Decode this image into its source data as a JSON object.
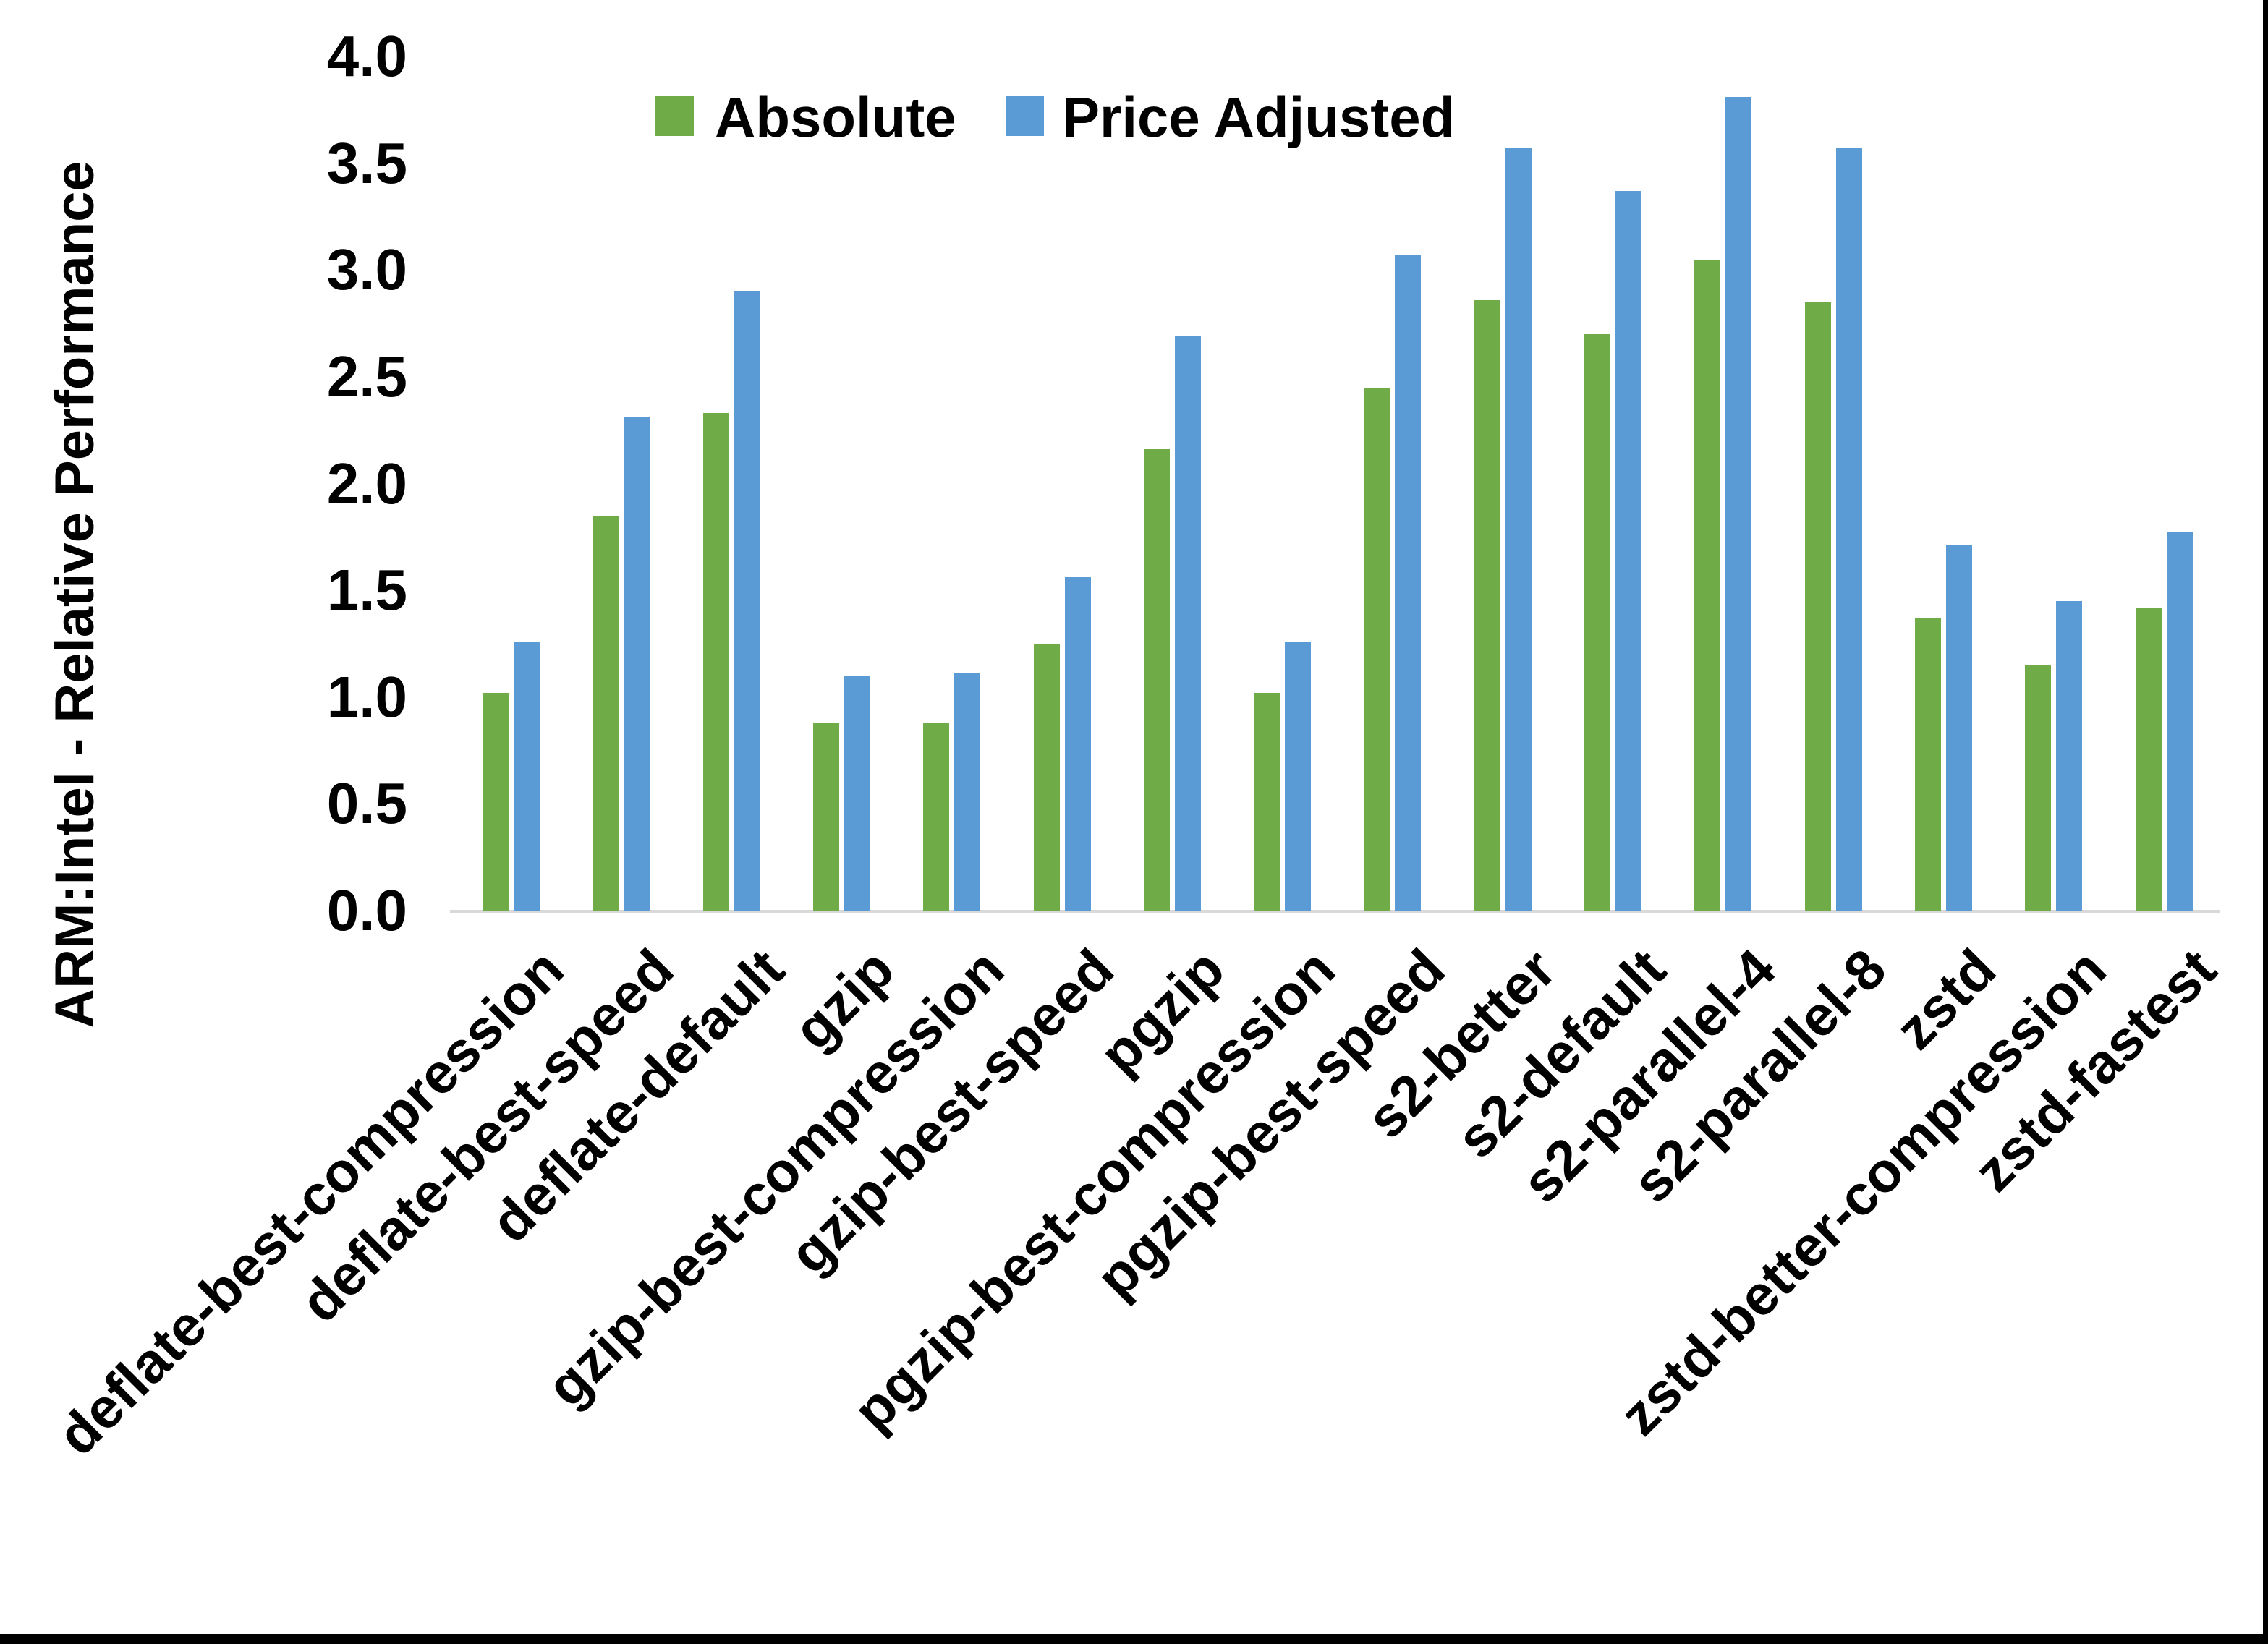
{
  "chart_data": {
    "type": "bar",
    "title": "",
    "xlabel": "",
    "ylabel": "ARM:Intel - Relative Performance",
    "ylim": [
      0.0,
      4.0
    ],
    "ytick_step": 0.5,
    "ytick_labels": [
      "0.0",
      "0.5",
      "1.0",
      "1.5",
      "2.0",
      "2.5",
      "3.0",
      "3.5",
      "4.0"
    ],
    "grid": "off",
    "legend_position": "top-center",
    "bar_orientation": "vertical",
    "x_label_rotation_deg": 45,
    "categories": [
      "deflate-best-compression",
      "deflate-best-speed",
      "deflate-default",
      "gzip",
      "gzip-best-compression",
      "gzip-best-speed",
      "pgzip",
      "pgzip-best-compression",
      "pgzip-best-speed",
      "s2-better",
      "s2-default",
      "s2-parallel-4",
      "s2-parallel-8",
      "zstd",
      "zstd-better-compression",
      "zstd-fastest"
    ],
    "series": [
      {
        "name": "Absolute",
        "color": "#6FAC47",
        "values": [
          1.02,
          1.85,
          2.33,
          0.88,
          0.88,
          1.25,
          2.16,
          1.02,
          2.45,
          2.86,
          2.7,
          3.05,
          2.85,
          1.37,
          1.15,
          1.42
        ]
      },
      {
        "name": "Price Adjusted",
        "color": "#5B9BD5",
        "values": [
          1.26,
          2.31,
          2.9,
          1.1,
          1.11,
          1.56,
          2.69,
          1.26,
          3.07,
          3.57,
          3.37,
          3.81,
          3.57,
          1.71,
          1.45,
          1.77
        ]
      }
    ],
    "axis_line_color": "#D9D9D9",
    "text_color": "#000000"
  },
  "frame": {
    "border_color": "#000000"
  }
}
